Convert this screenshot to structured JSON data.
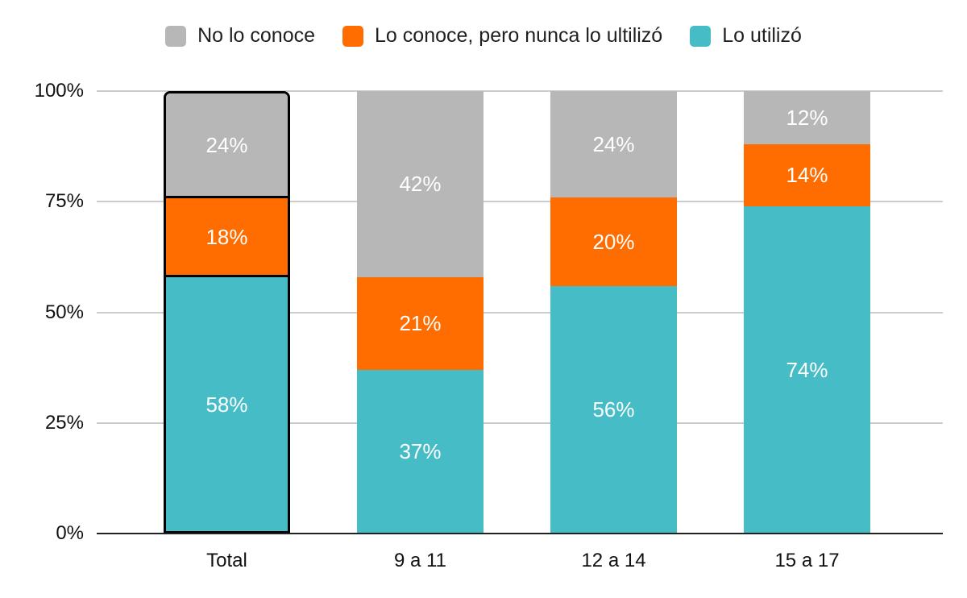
{
  "legend": {
    "items": [
      {
        "label": "No lo conoce",
        "color": "#B7B7B7"
      },
      {
        "label": "Lo conoce, pero nunca lo ultilizó",
        "color": "#FF6D01"
      },
      {
        "label": "Lo utilizó",
        "color": "#46BDC6"
      }
    ]
  },
  "chart_data": {
    "type": "bar",
    "subtype": "stacked-100-percent-column",
    "title": "",
    "xlabel": "",
    "ylabel": "",
    "categories": [
      "Total",
      "9 a 11",
      "12 a 14",
      "15 a 17"
    ],
    "series": [
      {
        "name": "Lo utilizó",
        "color": "#46BDC6",
        "values": [
          58,
          37,
          56,
          74
        ]
      },
      {
        "name": "Lo conoce, pero nunca lo ultilizó",
        "color": "#FF6D01",
        "values": [
          18,
          21,
          20,
          14
        ]
      },
      {
        "name": "No lo conoce",
        "color": "#B7B7B7",
        "values": [
          24,
          42,
          24,
          12
        ]
      }
    ],
    "label_suffix": "%",
    "y_ticks": [
      0,
      25,
      50,
      75,
      100
    ],
    "y_tick_suffix": "%",
    "ylim": [
      0,
      100
    ],
    "grid": true,
    "legend_position": "top",
    "highlighted_category": "Total",
    "colors": {
      "background": "#FFFFFF",
      "gridline": "#CCCCCC",
      "axis_line": "#212121",
      "tick_text": "#111111",
      "value_label": "#FFFFFF",
      "highlight_outline": "#000000"
    }
  }
}
